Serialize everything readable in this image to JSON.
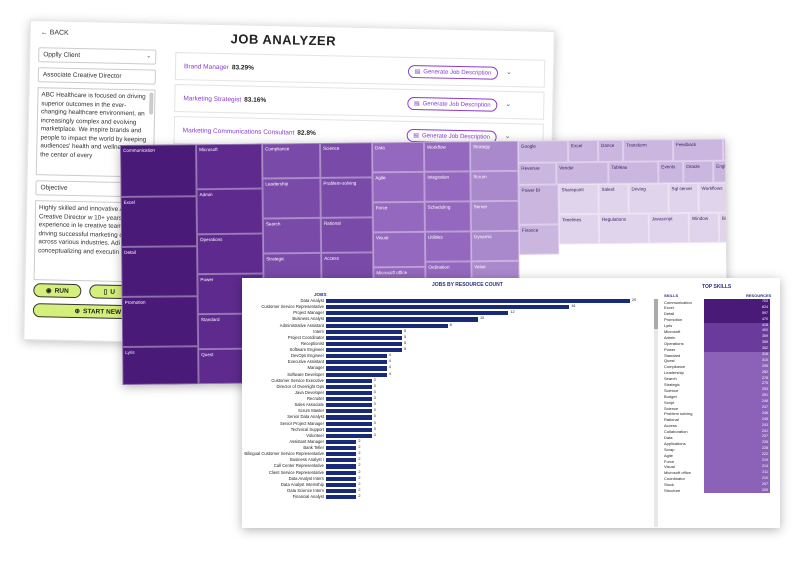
{
  "analyzer": {
    "back": "BACK",
    "title": "JOB ANALYZER",
    "client": "Opplly Client",
    "role": "Associate Creative Director",
    "description": "ABC Healthcare is focused on driving superior outcomes in the ever-changing healthcare environment, an increasingly complex and evolving marketplace. We inspire brands and people to impact the world by keeping audiences' health and wellne needs at the center of every",
    "objective_label": "Objective",
    "objective": "Highly skilled and innovative Associate Creative Director w 10+ years of experience in le creative teams and driving successful marketing campai across various industries. Adi conceptualizing and executin",
    "run": "RUN",
    "u_btn": "U",
    "start_new": "START NEW",
    "generate": "Generate Job Description",
    "jobs": [
      {
        "title": "Brand Manager",
        "pct": "83.29%"
      },
      {
        "title": "Marketing Strategist",
        "pct": "83.16%"
      },
      {
        "title": "Marketing Communications Consultant",
        "pct": "82.8%"
      }
    ]
  },
  "treemap": {
    "cells": [
      {
        "label": "Communication",
        "shade": 1
      },
      {
        "label": "Excel",
        "shade": 1
      },
      {
        "label": "Detail",
        "shade": 1
      },
      {
        "label": "Promotion",
        "shade": 1
      },
      {
        "label": "Lyris",
        "shade": 1
      },
      {
        "label": "Microsoft",
        "shade": 2
      },
      {
        "label": "Admin",
        "shade": 2
      },
      {
        "label": "Operations",
        "shade": 2
      },
      {
        "label": "Power",
        "shade": 2
      },
      {
        "label": "Standard",
        "shade": 2
      },
      {
        "label": "Quest",
        "shade": 2
      },
      {
        "label": "Compliance",
        "shade": 3
      },
      {
        "label": "Leadership",
        "shade": 3
      },
      {
        "label": "Search",
        "shade": 3
      },
      {
        "label": "Strategic",
        "shade": 3
      },
      {
        "label": "Science",
        "shade": 3
      },
      {
        "label": "Problem-solving",
        "shade": 3
      },
      {
        "label": "Rational",
        "shade": 3
      },
      {
        "label": "Access",
        "shade": 3
      },
      {
        "label": "Data",
        "shade": 4
      },
      {
        "label": "Agile",
        "shade": 4
      },
      {
        "label": "Force",
        "shade": 4
      },
      {
        "label": "Visual",
        "shade": 4
      },
      {
        "label": "Microsoft office",
        "shade": 4
      },
      {
        "label": "Workflow",
        "shade": 4
      },
      {
        "label": "Integration",
        "shade": 4
      },
      {
        "label": "Scheduling",
        "shade": 4
      },
      {
        "label": "Utilities",
        "shade": 4
      },
      {
        "label": "Ordination",
        "shade": 4
      },
      {
        "label": "Strategy",
        "shade": 5
      },
      {
        "label": "Scrum",
        "shade": 5
      },
      {
        "label": "Server",
        "shade": 5
      },
      {
        "label": "Dynamic",
        "shade": 5
      },
      {
        "label": "Value",
        "shade": 5
      },
      {
        "label": "Google",
        "shade": 6
      },
      {
        "label": "Excel",
        "shade": 6
      },
      {
        "label": "Dance",
        "shade": 6
      },
      {
        "label": "Transform",
        "shade": 6
      },
      {
        "label": "Feedback",
        "shade": 6
      },
      {
        "label": "Outlook",
        "shade": 6
      },
      {
        "label": "Revenue",
        "shade": 6
      },
      {
        "label": "Vendor",
        "shade": 6
      },
      {
        "label": "Tableau",
        "shade": 6
      },
      {
        "label": "Events",
        "shade": 6
      },
      {
        "label": "Oracle",
        "shade": 6
      },
      {
        "label": "English",
        "shade": 6
      },
      {
        "label": "Graph",
        "shade": 6
      },
      {
        "label": "Power BI",
        "shade": 6
      },
      {
        "label": "Finance",
        "shade": 6
      },
      {
        "label": "Sharepoint",
        "shade": 7
      },
      {
        "label": "Timelines",
        "shade": 7
      },
      {
        "label": "Salesf.",
        "shade": 7
      },
      {
        "label": "Driving",
        "shade": 7
      },
      {
        "label": "Sql server",
        "shade": 7
      },
      {
        "label": "Workflows",
        "shade": 7
      },
      {
        "label": "Regulations",
        "shade": 7
      },
      {
        "label": "Javascript",
        "shade": 7
      },
      {
        "label": "Window",
        "shade": 7
      },
      {
        "label": "Billing",
        "shade": 7
      }
    ]
  },
  "resource": {
    "title": "JOBS BY RESOURCE COUNT",
    "job_header": "JOBS",
    "skills_title": "TOP SKILLS",
    "skills_header": "SKILLS",
    "resources_header": "RESOURCES"
  },
  "chart_data": [
    {
      "type": "bar",
      "title": "JOBS BY RESOURCE COUNT",
      "xlabel": "",
      "ylabel": "JOBS",
      "categories": [
        "Data Analyst",
        "Customer Service Representative",
        "Project Manager",
        "Business Analyst",
        "Administrative Assistant",
        "Intern",
        "Project Coordinator",
        "Receptionist",
        "Software Engineer",
        "DevOps Engineer",
        "Executive Assistant",
        "Manager",
        "Software Developer",
        "Customer Service Executive",
        "Director of Overnight Ops",
        "Java Developer",
        "Recruiter",
        "Sales Associate",
        "Scrum Master",
        "Senior Data Analyst",
        "Senior Project Manager",
        "Technical Support",
        "Volunteer",
        "Assistant Manager",
        "Bank Teller",
        "Bilingual Customer Service Representative",
        "Business Analyst I",
        "Call Center Representative",
        "Client Service Representative",
        "Data Analyst Intern",
        "Data Analyst Internship",
        "Data Science Intern",
        "Financial Analyst"
      ],
      "values": [
        20,
        16,
        12,
        10,
        8,
        5,
        5,
        5,
        5,
        4,
        4,
        4,
        4,
        3,
        3,
        3,
        3,
        3,
        3,
        3,
        3,
        3,
        3,
        2,
        2,
        2,
        2,
        2,
        2,
        2,
        2,
        2,
        2
      ]
    },
    {
      "type": "table",
      "title": "TOP SKILLS",
      "columns": [
        "SKILLS",
        "RESOURCES"
      ],
      "rows": [
        [
          "Communication",
          "703"
        ],
        [
          "Excel",
          "624"
        ],
        [
          "Detail",
          "597"
        ],
        [
          "Promotion",
          "470"
        ],
        [
          "Lyris",
          "418"
        ],
        [
          "Microsoft",
          "400"
        ],
        [
          "Admin",
          "359"
        ],
        [
          "Operations",
          "359"
        ],
        [
          "Power",
          "352"
        ],
        [
          "Standard",
          "318"
        ],
        [
          "Quest",
          "310"
        ],
        [
          "Compliance",
          "295"
        ],
        [
          "Leadership",
          "282"
        ],
        [
          "Search",
          "278"
        ],
        [
          "Strategic",
          "275"
        ],
        [
          "Science",
          "253"
        ],
        [
          "Budget",
          "251"
        ],
        [
          "Script",
          "248"
        ],
        [
          "Science",
          "247"
        ],
        [
          "Problem solving",
          "246"
        ],
        [
          "Rational",
          "245"
        ],
        [
          "Access",
          "243"
        ],
        [
          "Collaboration",
          "241"
        ],
        [
          "Data",
          "237"
        ],
        [
          "Applications",
          "235"
        ],
        [
          "Scrap",
          "228"
        ],
        [
          "Agile",
          "222"
        ],
        [
          "Force",
          "219"
        ],
        [
          "Visual",
          "214"
        ],
        [
          "Microsoft office",
          "211"
        ],
        [
          "Coordinator",
          "210"
        ],
        [
          "Stock",
          "207"
        ],
        [
          "Structure",
          "205"
        ]
      ]
    }
  ]
}
